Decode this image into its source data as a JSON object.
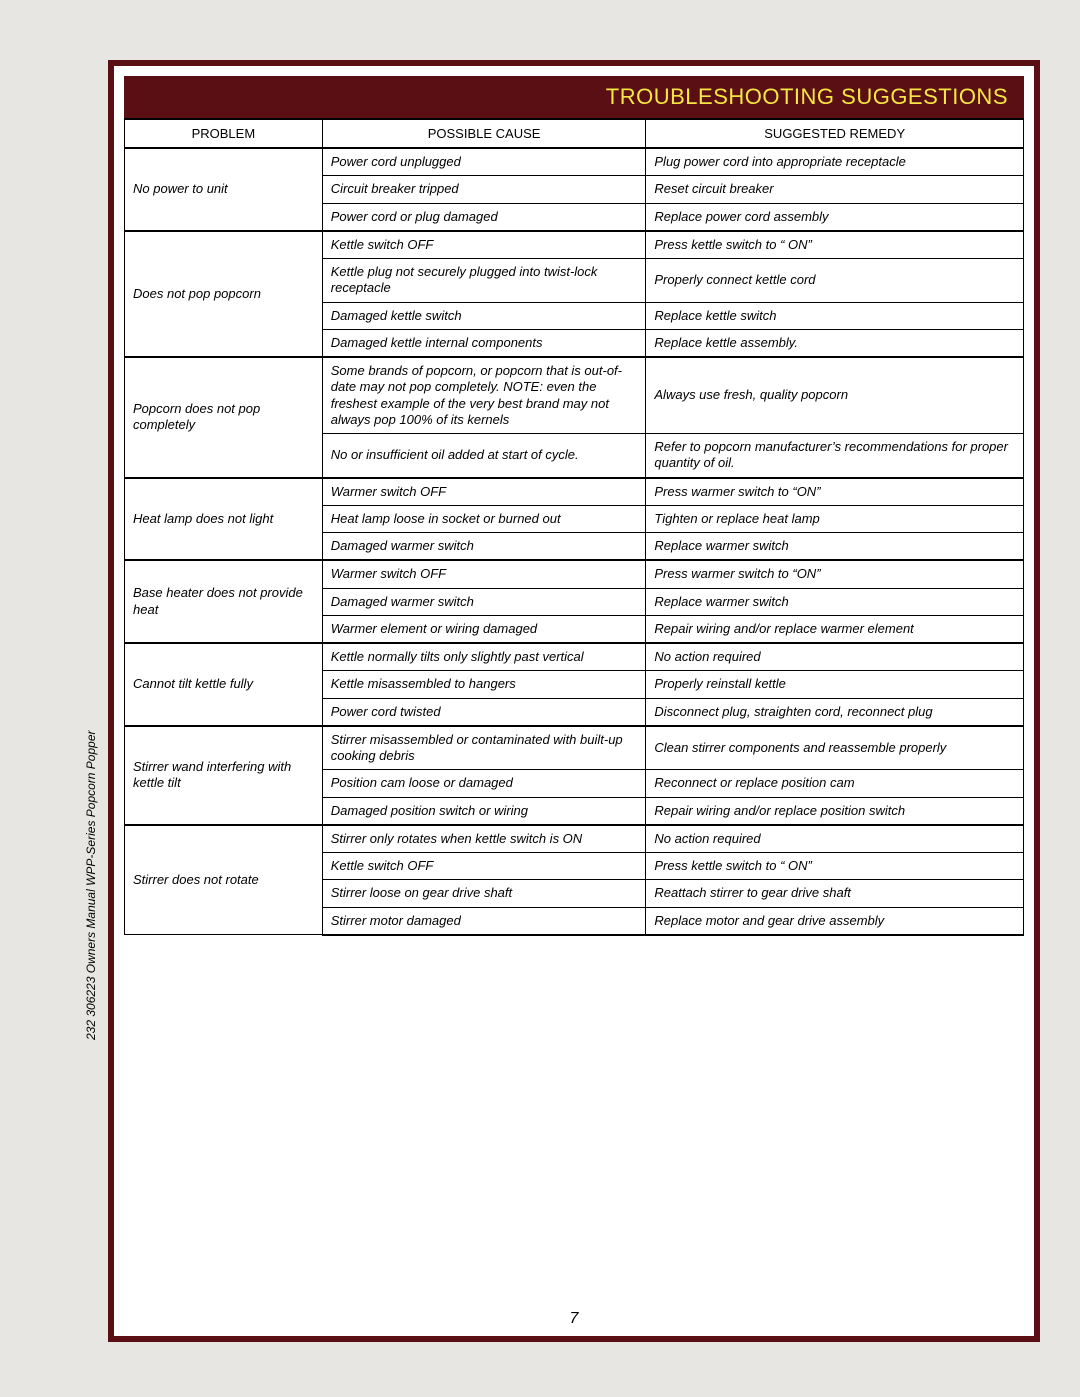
{
  "page": {
    "title": "TROUBLESHOOTING SUGGESTIONS",
    "side_text": "232  306223  Owners Manual WPP-Series Popcorn Popper",
    "page_number": "7",
    "colors": {
      "border": "#5a0f14",
      "title_bg": "#5a0f14",
      "title_fg": "#f5e642",
      "page_bg": "#ffffff",
      "body_bg": "#e8e6e2"
    }
  },
  "table": {
    "headers": [
      "PROBLEM",
      "POSSIBLE CAUSE",
      "SUGGESTED REMEDY"
    ],
    "groups": [
      {
        "problem": "No power to unit",
        "rows": [
          {
            "cause": "Power cord unplugged",
            "remedy": "Plug power cord into appropriate receptacle"
          },
          {
            "cause": "Circuit breaker tripped",
            "remedy": "Reset circuit breaker"
          },
          {
            "cause": "Power cord or plug damaged",
            "remedy": "Replace power cord assembly"
          }
        ]
      },
      {
        "problem": "Does not pop popcorn",
        "rows": [
          {
            "cause": "Kettle switch   OFF",
            "remedy": "Press kettle switch to “ ON”"
          },
          {
            "cause": "Kettle plug not securely plugged into twist-lock receptacle",
            "remedy": "Properly connect kettle cord"
          },
          {
            "cause": "Damaged kettle switch",
            "remedy": "Replace kettle switch"
          },
          {
            "cause": "Damaged kettle internal components",
            "remedy": "Replace kettle assembly."
          }
        ]
      },
      {
        "problem": "Popcorn does not pop completely",
        "rows": [
          {
            "cause": "Some brands of popcorn, or popcorn that is out-of-date may not pop completely. NOTE: even the freshest example of the very best brand may not always pop 100% of its kernels",
            "remedy": "Always use fresh, quality popcorn"
          },
          {
            "cause": "No or insufficient oil added at start of cycle.",
            "remedy": "Refer to popcorn manufacturer’s recommendations for proper quantity of oil."
          }
        ]
      },
      {
        "problem": "Heat lamp does not light",
        "rows": [
          {
            "cause": "Warmer switch OFF",
            "remedy": "Press warmer switch to “ON”"
          },
          {
            "cause": "Heat lamp loose in socket or burned out",
            "remedy": "Tighten or replace heat lamp"
          },
          {
            "cause": "Damaged warmer switch",
            "remedy": "Replace warmer switch"
          }
        ]
      },
      {
        "problem": "Base heater does not provide heat",
        "rows": [
          {
            "cause": "Warmer switch OFF",
            "remedy": "Press warmer switch to “ON”"
          },
          {
            "cause": "Damaged warmer switch",
            "remedy": "Replace warmer switch"
          },
          {
            "cause": "Warmer element or wiring damaged",
            "remedy": "Repair wiring and/or replace warmer element"
          }
        ]
      },
      {
        "problem": "Cannot tilt kettle fully",
        "rows": [
          {
            "cause": "Kettle normally tilts only slightly past vertical",
            "remedy": "No action required"
          },
          {
            "cause": "Kettle misassembled to hangers",
            "remedy": "Properly reinstall kettle"
          },
          {
            "cause": "Power cord twisted",
            "remedy": "Disconnect plug, straighten cord, reconnect plug"
          }
        ]
      },
      {
        "problem": "Stirrer wand interfering with kettle tilt",
        "rows": [
          {
            "cause": "Stirrer misassembled or contaminated with built-up cooking debris",
            "remedy": "Clean stirrer components and reassemble properly"
          },
          {
            "cause": "Position cam loose or damaged",
            "remedy": "Reconnect or replace position cam"
          },
          {
            "cause": "Damaged position switch or wiring",
            "remedy": "Repair wiring and/or replace position switch"
          }
        ]
      },
      {
        "problem": "Stirrer does not rotate",
        "rows": [
          {
            "cause": "Stirrer only rotates when kettle switch is   ON",
            "remedy": "No action required"
          },
          {
            "cause": "Kettle switch   OFF",
            "remedy": "Press kettle switch to “ ON”"
          },
          {
            "cause": "Stirrer loose on gear drive shaft",
            "remedy": "Reattach stirrer to gear drive shaft"
          },
          {
            "cause": "Stirrer motor damaged",
            "remedy": "Replace motor and gear drive assembly"
          }
        ]
      }
    ]
  }
}
